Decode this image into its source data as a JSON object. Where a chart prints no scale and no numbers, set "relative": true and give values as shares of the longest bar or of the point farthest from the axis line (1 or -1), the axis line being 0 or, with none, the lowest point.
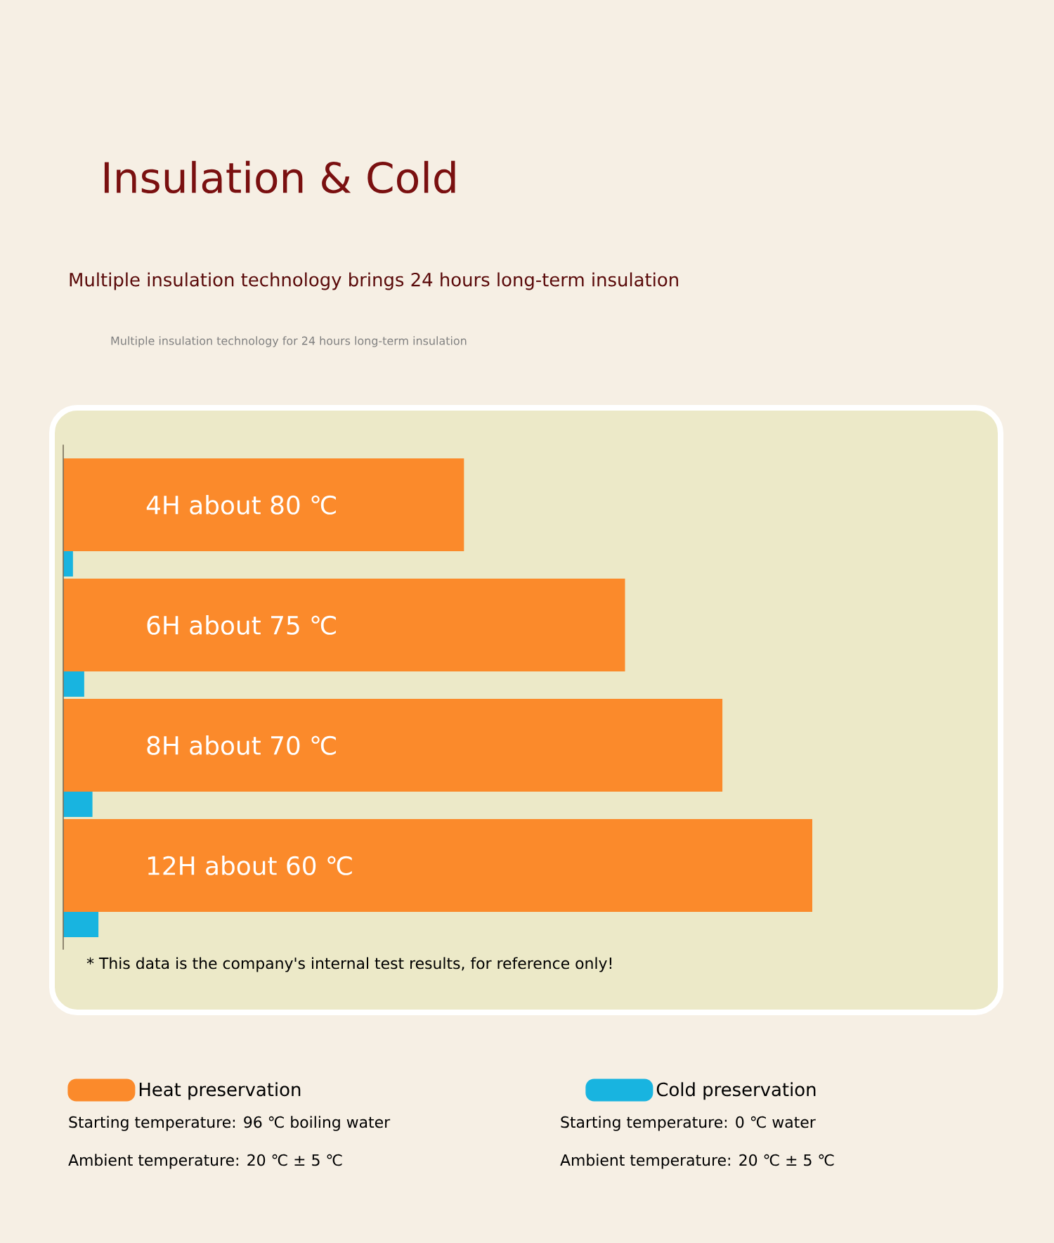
{
  "chart_data": {
    "type": "bar",
    "orientation": "horizontal",
    "relative": true,
    "title": "Insulation & Cold",
    "subtitle": "Multiple insulation technology brings 24 hours long-term insulation",
    "annotations": [
      "Multiple insulation technology for 24 hours long-term insulation",
      "* This data is the company's internal test results, for reference only!",
      "Starting temperature: 96 ℃ boiling water",
      "Ambient temperature: 20 ℃ ± 5 ℃",
      "Starting temperature: 0 ℃ water",
      "Ambient temperature: 20 ℃ ± 5 ℃"
    ],
    "categories": [
      "4H about 80 ℃",
      "6H about 75 ℃",
      "8H about 70 ℃",
      "12H about 60 ℃"
    ],
    "legend": "bottom",
    "series": [
      {
        "name": "Heat preservation",
        "color": "#fb8a2b",
        "values": [
          0.535,
          0.75,
          0.88,
          1
        ]
      },
      {
        "name": "Cold preservation",
        "color": "#18b4e0",
        "values": [
          0.013,
          0.028,
          0.039,
          0.047
        ]
      }
    ]
  }
}
